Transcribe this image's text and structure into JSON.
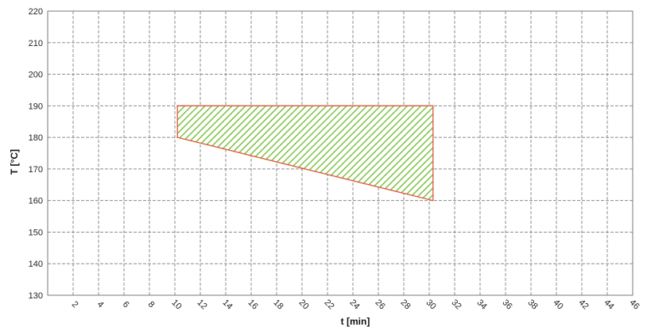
{
  "chart_data": {
    "type": "area",
    "xlabel": "t [min]",
    "ylabel": "T [°C]",
    "xlim": [
      0,
      46
    ],
    "ylim": [
      130,
      220
    ],
    "x_ticks": [
      2,
      4,
      6,
      8,
      10,
      12,
      14,
      16,
      18,
      20,
      22,
      24,
      26,
      28,
      30,
      32,
      34,
      36,
      38,
      40,
      42,
      44,
      46
    ],
    "y_ticks": [
      130,
      140,
      150,
      160,
      170,
      180,
      190,
      200,
      210,
      220
    ],
    "grid": true,
    "series": [
      {
        "polygon": [
          {
            "x": 10.2,
            "y": 190
          },
          {
            "x": 30.3,
            "y": 190
          },
          {
            "x": 30.3,
            "y": 160
          },
          {
            "x": 10.2,
            "y": 180
          }
        ],
        "fill": "#7cc243",
        "fill_pattern": "diagonal-hatch",
        "stroke": "#e0573a"
      }
    ]
  }
}
